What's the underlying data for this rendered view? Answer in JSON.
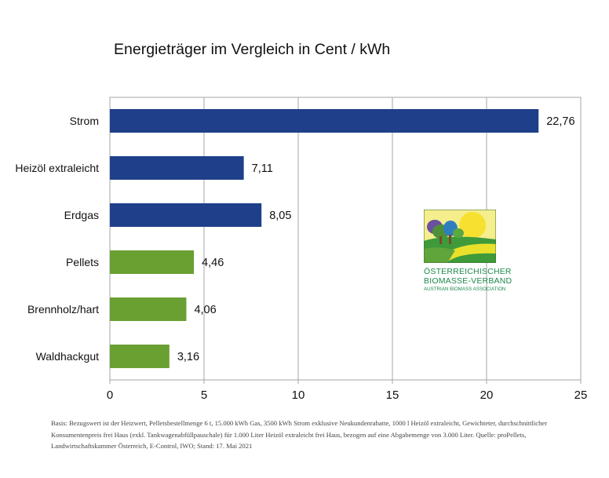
{
  "chart_data": {
    "type": "bar",
    "orientation": "horizontal",
    "title": "Energieträger im Vergleich in Cent / kWh",
    "categories": [
      "Strom",
      "Heizöl extraleicht",
      "Erdgas",
      "Pellets",
      "Brennholz/hart",
      "Waldhackgut"
    ],
    "values": [
      22.76,
      7.11,
      8.05,
      4.46,
      4.06,
      3.16
    ],
    "value_labels": [
      "22,76",
      "7,11",
      "8,05",
      "4,46",
      "4,06",
      "3,16"
    ],
    "bar_colors": [
      "#1f3f8a",
      "#1f3f8a",
      "#1f3f8a",
      "#6a9f32",
      "#6a9f32",
      "#6a9f32"
    ],
    "xlim": [
      0,
      25
    ],
    "xticks": [
      0,
      5,
      10,
      15,
      20,
      25
    ],
    "xlabel": "",
    "ylabel": "",
    "grid": "vertical"
  },
  "logo": {
    "name_line1": "Österreichischer",
    "name_line2": "Biomasse-Verband",
    "subtitle": "Austrian Biomass Association"
  },
  "footnote": {
    "line1": "Basis: Bezugswert ist der Heizwert, Pelletsbestellmenge 6 t, 15.000 kWh Gas, 3500 kWh Strom exklusive Neukundenrabatte, 1000 l Heizöl extraleicht, Gewichteter, durchschnittlicher",
    "line2": "Konsumentenpreis frei Haus (exkl. Tankwagenabfüllpauschale) für 1.000 Liter Heizöl extraleicht frei Haus, bezogen auf eine Abgabemenge von 3.000 Liter. Quelle: proPellets,",
    "line3": "Landwirtschaftskammer Österreich, E-Control, IWO; Stand: 17. Mai 2021"
  }
}
